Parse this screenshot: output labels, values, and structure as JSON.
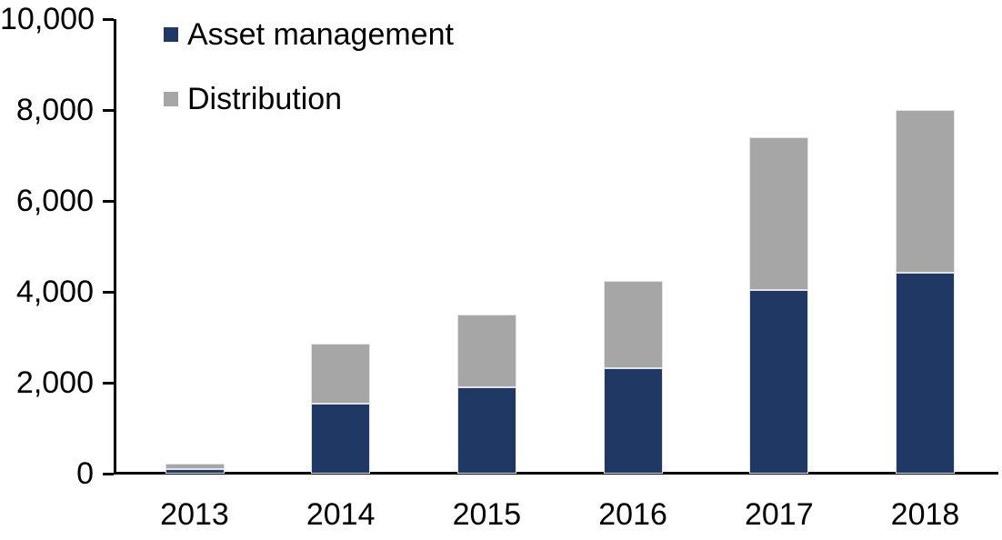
{
  "chart_data": {
    "type": "bar",
    "stacked": true,
    "title": "",
    "xlabel": "",
    "ylabel": "",
    "grid": false,
    "legend_position": "top-left",
    "categories": [
      "2013",
      "2014",
      "2015",
      "2016",
      "2017",
      "2018"
    ],
    "series": [
      {
        "name": "Asset management",
        "color": "#1F3864",
        "values": [
          100,
          1550,
          1900,
          2320,
          4050,
          4430
        ]
      },
      {
        "name": "Distribution",
        "color": "#A6A6A6",
        "values": [
          120,
          1320,
          1600,
          1930,
          3350,
          3570
        ]
      }
    ],
    "totals": [
      220,
      2870,
      3500,
      4250,
      7400,
      8000
    ],
    "ylim": [
      0,
      10000
    ],
    "yticks": [
      {
        "value": 0,
        "label": "0"
      },
      {
        "value": 2000,
        "label": "2,000"
      },
      {
        "value": 4000,
        "label": "4,000"
      },
      {
        "value": 6000,
        "label": "6,000"
      },
      {
        "value": 8000,
        "label": "8,000"
      },
      {
        "value": 10000,
        "label": "10,000"
      }
    ],
    "axis_color": "#000000",
    "bar_border_color": "#e3e3e3",
    "background_color": "#ffffff"
  }
}
